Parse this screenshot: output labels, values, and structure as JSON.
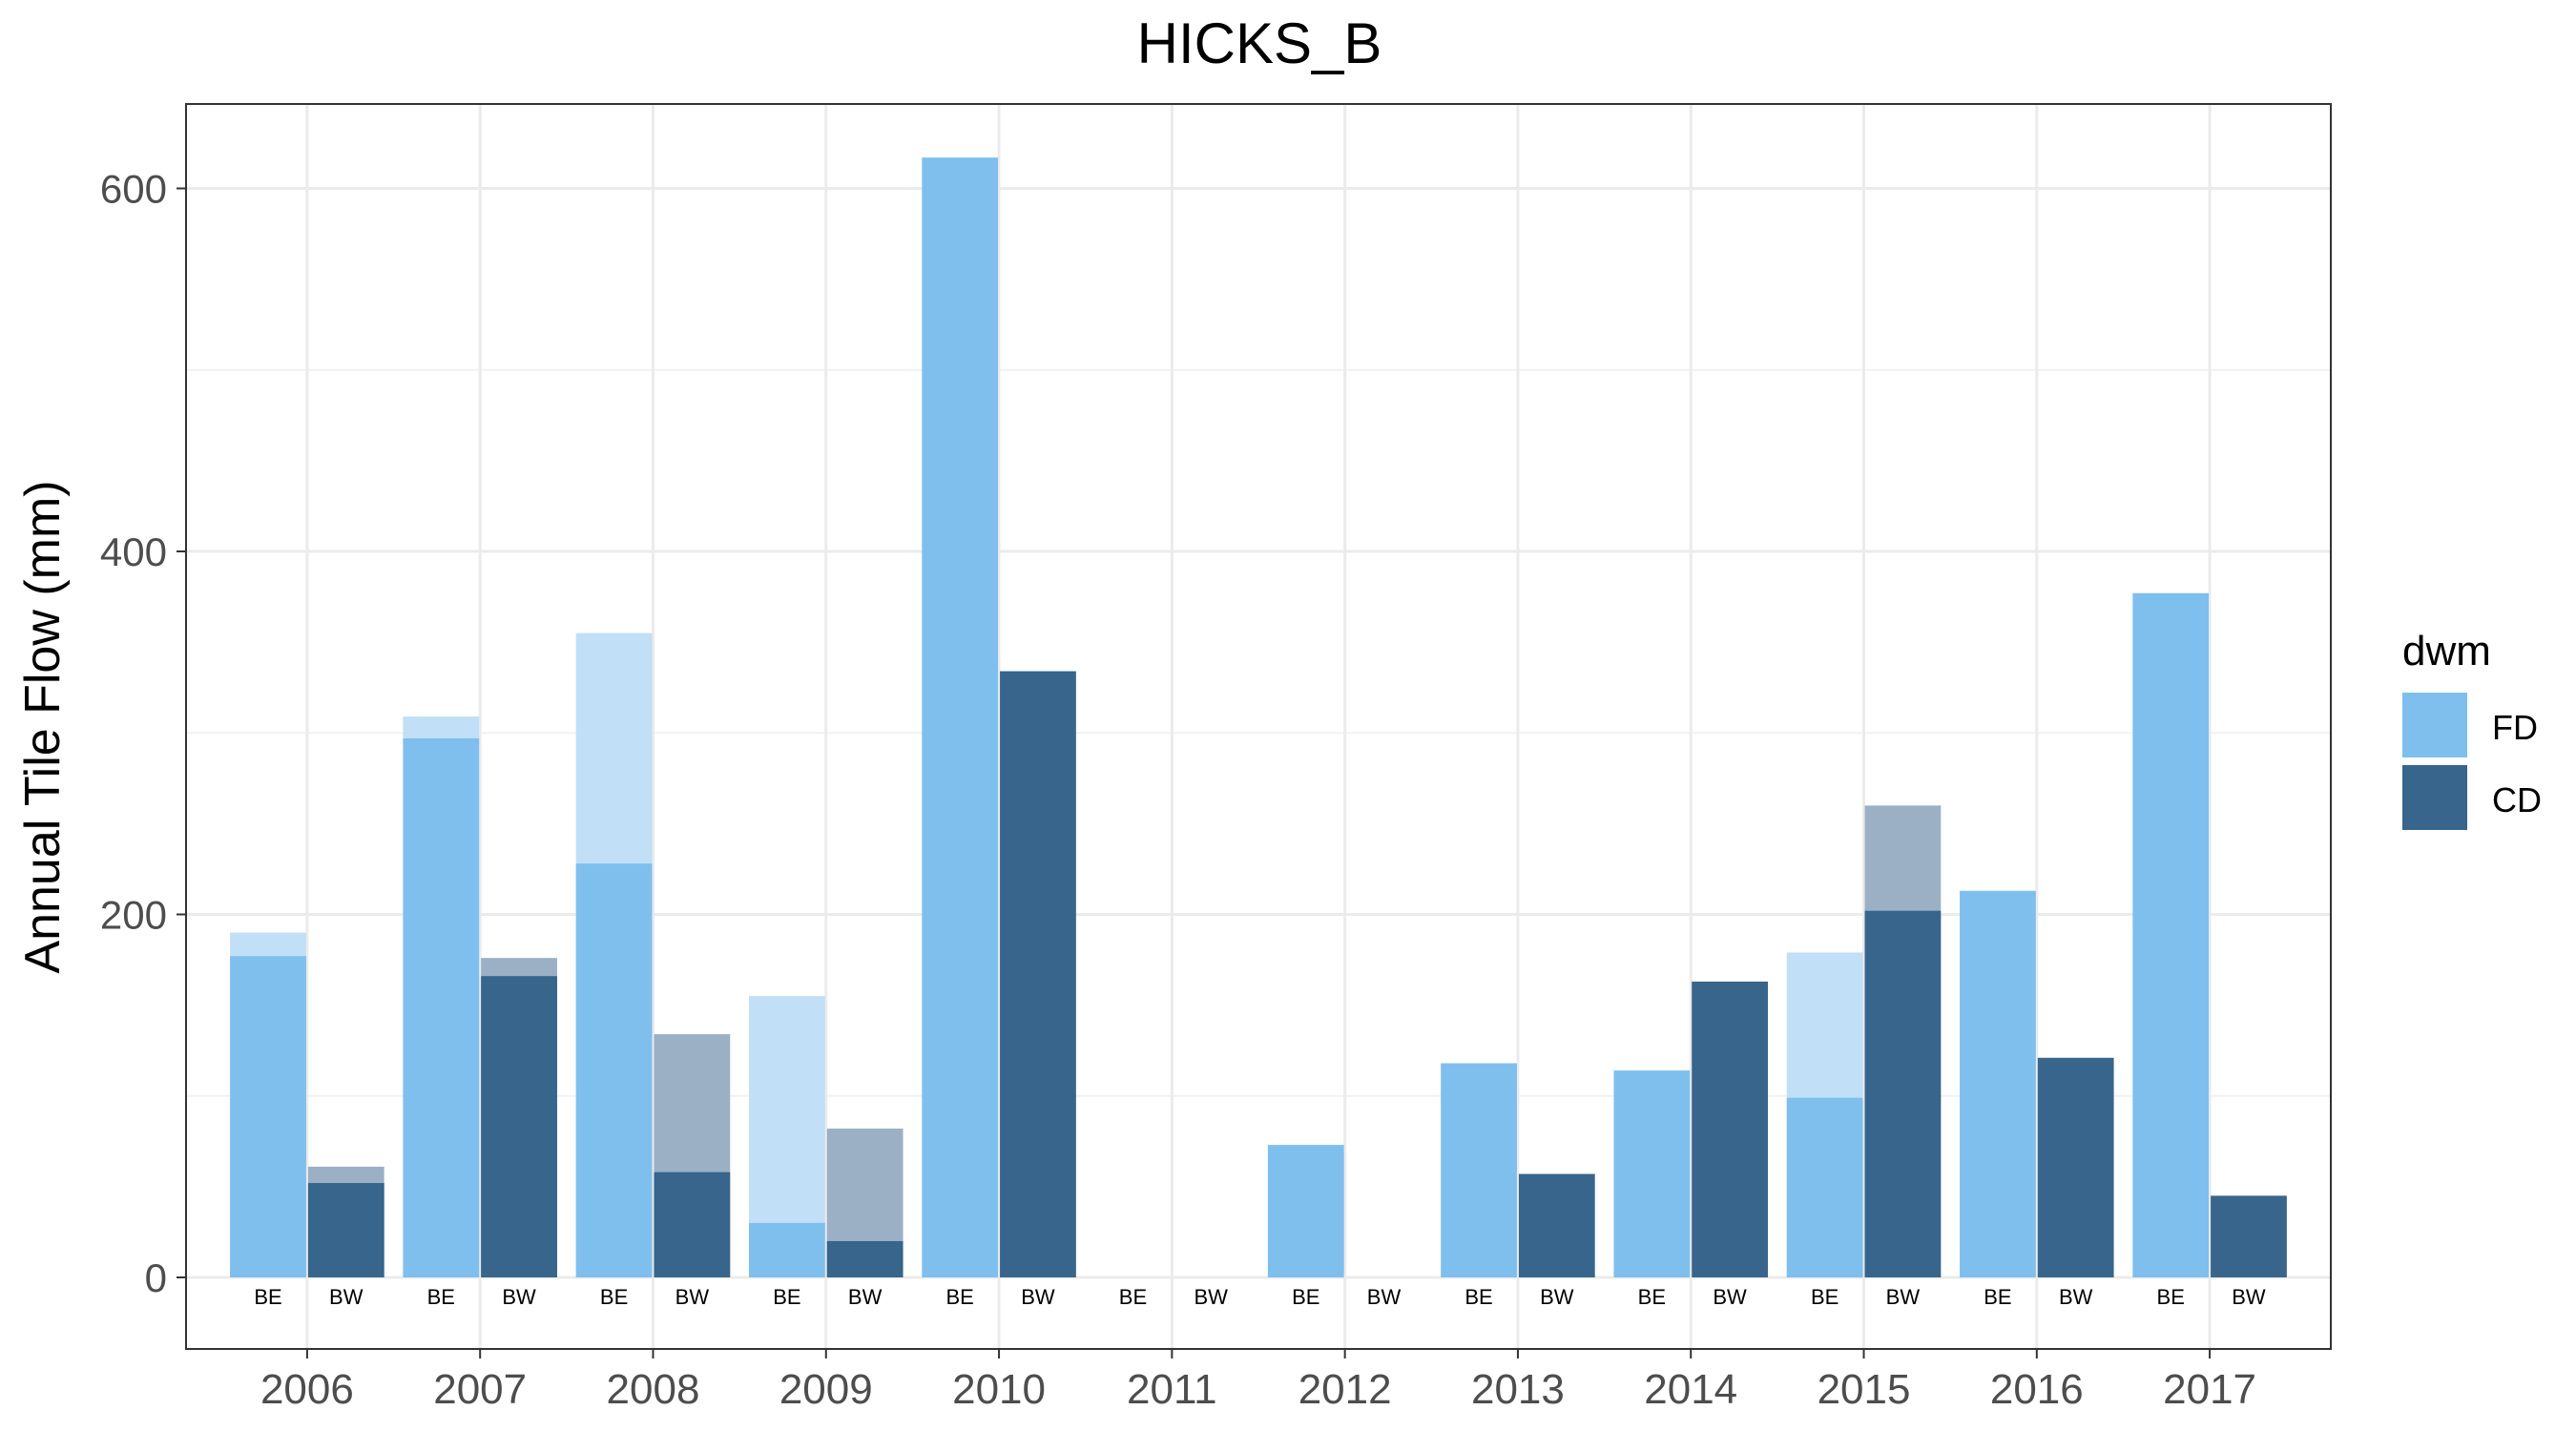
{
  "chart_data": {
    "type": "bar",
    "title": "HICKS_B",
    "xlabel": "",
    "ylabel": "Annual Tile Flow (mm)",
    "ylim": [
      -40,
      650
    ],
    "yticks": [
      0,
      200,
      400,
      600
    ],
    "grid": true,
    "categories": [
      "2006",
      "2007",
      "2008",
      "2009",
      "2010",
      "2011",
      "2012",
      "2013",
      "2014",
      "2015",
      "2016",
      "2017"
    ],
    "sub_categories": [
      "BE",
      "BW"
    ],
    "legend": {
      "title": "dwm",
      "placement": "right",
      "entries": [
        {
          "label": "FD",
          "color": "#7fbfed"
        },
        {
          "label": "CD",
          "color": "#37658b"
        }
      ]
    },
    "series": [
      {
        "name": "FD",
        "sub": "BE",
        "color": "#7fbfed",
        "light_color": "#c1dff6",
        "values": [
          177,
          297,
          228,
          30,
          617,
          null,
          73,
          118,
          114,
          99,
          213,
          377
        ],
        "upper_values": [
          190,
          309,
          355,
          155,
          null,
          null,
          null,
          null,
          null,
          179,
          null,
          null
        ]
      },
      {
        "name": "CD",
        "sub": "BW",
        "color": "#37658b",
        "light_color": "#9bb0c5",
        "values": [
          52,
          166,
          58,
          20,
          334,
          null,
          null,
          57,
          163,
          202,
          121,
          45
        ],
        "upper_values": [
          61,
          176,
          134,
          82,
          null,
          null,
          null,
          null,
          null,
          260,
          null,
          null
        ]
      }
    ]
  }
}
